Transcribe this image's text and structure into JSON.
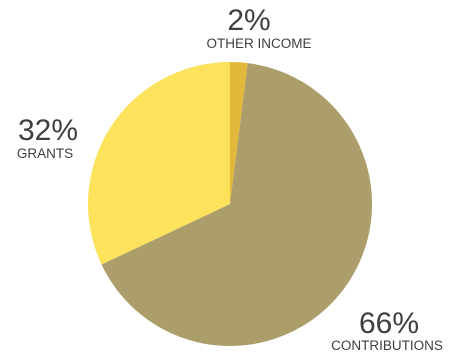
{
  "chart_data": {
    "type": "pie",
    "slices": [
      {
        "label": "OTHER INCOME",
        "value": 2,
        "value_label": "2%",
        "color": "#e2b83a"
      },
      {
        "label": "CONTRIBUTIONS",
        "value": 66,
        "value_label": "66%",
        "color": "#ab9e6b"
      },
      {
        "label": "GRANTS",
        "value": 32,
        "value_label": "32%",
        "color": "#fde25c"
      }
    ],
    "start": "top",
    "direction": "clockwise",
    "legend": "none"
  }
}
